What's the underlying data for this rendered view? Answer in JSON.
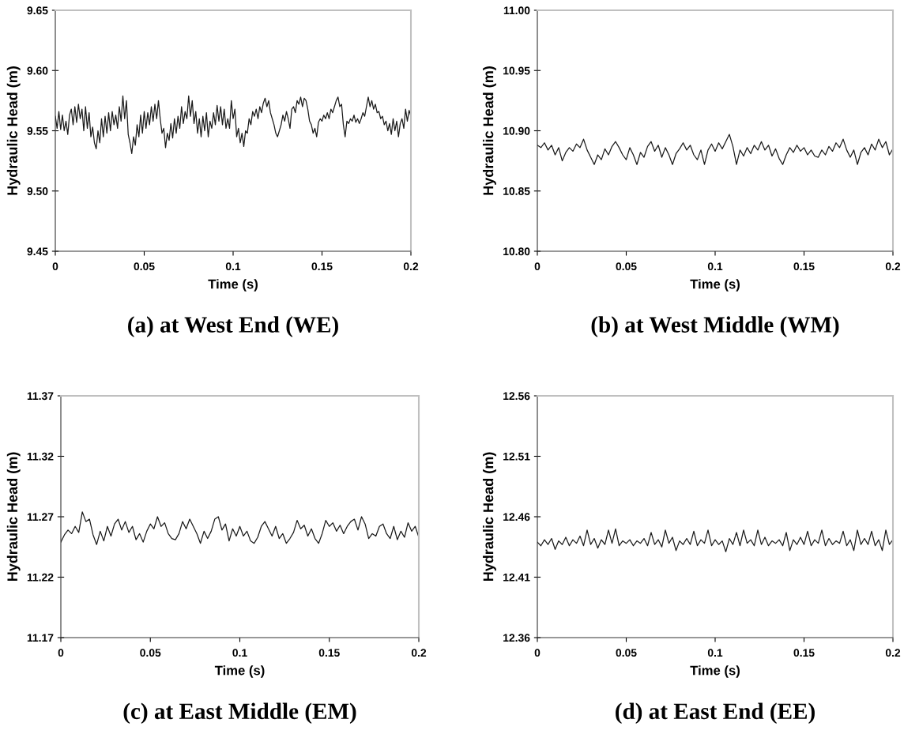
{
  "chart_data": [
    {
      "type": "line",
      "title": "(a) at West End (WE)",
      "xlabel": "Time (s)",
      "ylabel": "Hydraulic Head (m)",
      "xlim": [
        0,
        0.2
      ],
      "xticks": [
        0,
        0.05,
        0.1,
        0.15,
        0.2
      ],
      "ylim": [
        9.45,
        9.65
      ],
      "yticks": [
        9.45,
        {
          "value": 9.5,
          "label": "9.50"
        },
        9.55,
        {
          "value": 9.6,
          "label": "9.60"
        },
        9.65
      ],
      "x": [
        0,
        0.001,
        0.002,
        0.003,
        0.004,
        0.005,
        0.006,
        0.007,
        0.008,
        0.009,
        0.01,
        0.011,
        0.012,
        0.013,
        0.014,
        0.015,
        0.016,
        0.017,
        0.018,
        0.019,
        0.02,
        0.021,
        0.022,
        0.023,
        0.024,
        0.025,
        0.026,
        0.027,
        0.028,
        0.029,
        0.03,
        0.031,
        0.032,
        0.033,
        0.034,
        0.035,
        0.036,
        0.037,
        0.038,
        0.039,
        0.04,
        0.041,
        0.042,
        0.043,
        0.044,
        0.045,
        0.046,
        0.047,
        0.048,
        0.049,
        0.05,
        0.051,
        0.052,
        0.053,
        0.054,
        0.055,
        0.056,
        0.057,
        0.058,
        0.059,
        0.06,
        0.061,
        0.062,
        0.063,
        0.064,
        0.065,
        0.066,
        0.067,
        0.068,
        0.069,
        0.07,
        0.071,
        0.072,
        0.073,
        0.074,
        0.075,
        0.076,
        0.077,
        0.078,
        0.079,
        0.08,
        0.081,
        0.082,
        0.083,
        0.084,
        0.085,
        0.086,
        0.087,
        0.088,
        0.089,
        0.09,
        0.091,
        0.092,
        0.093,
        0.094,
        0.095,
        0.096,
        0.097,
        0.098,
        0.099,
        0.1,
        0.101,
        0.102,
        0.103,
        0.104,
        0.105,
        0.106,
        0.107,
        0.108,
        0.109,
        0.11,
        0.111,
        0.112,
        0.113,
        0.114,
        0.115,
        0.116,
        0.117,
        0.118,
        0.119,
        0.12,
        0.121,
        0.122,
        0.123,
        0.124,
        0.125,
        0.126,
        0.127,
        0.128,
        0.129,
        0.13,
        0.131,
        0.132,
        0.133,
        0.134,
        0.135,
        0.136,
        0.137,
        0.138,
        0.139,
        0.14,
        0.141,
        0.142,
        0.143,
        0.144,
        0.145,
        0.146,
        0.147,
        0.148,
        0.149,
        0.15,
        0.151,
        0.152,
        0.153,
        0.154,
        0.155,
        0.156,
        0.157,
        0.158,
        0.159,
        0.16,
        0.161,
        0.162,
        0.163,
        0.164,
        0.165,
        0.166,
        0.167,
        0.168,
        0.169,
        0.17,
        0.171,
        0.172,
        0.173,
        0.174,
        0.175,
        0.176,
        0.177,
        0.178,
        0.179,
        0.18,
        0.181,
        0.182,
        0.183,
        0.184,
        0.185,
        0.186,
        0.187,
        0.188,
        0.189,
        0.19,
        0.191,
        0.192,
        0.193,
        0.194,
        0.195,
        0.196,
        0.197,
        0.198,
        0.199,
        0.2
      ],
      "series": [
        {
          "color": "#1a1a1a",
          "values": [
            9.562,
            9.552,
            9.566,
            9.551,
            9.563,
            9.55,
            9.558,
            9.547,
            9.563,
            9.568,
            9.555,
            9.57,
            9.557,
            9.572,
            9.56,
            9.568,
            9.55,
            9.57,
            9.552,
            9.565,
            9.545,
            9.553,
            9.54,
            9.535,
            9.55,
            9.54,
            9.56,
            9.545,
            9.562,
            9.548,
            9.565,
            9.55,
            9.566,
            9.555,
            9.563,
            9.552,
            9.57,
            9.558,
            9.579,
            9.56,
            9.575,
            9.547,
            9.54,
            9.531,
            9.545,
            9.538,
            9.555,
            9.545,
            9.563,
            9.548,
            9.566,
            9.552,
            9.565,
            9.555,
            9.57,
            9.558,
            9.572,
            9.56,
            9.575,
            9.56,
            9.548,
            9.552,
            9.536,
            9.548,
            9.542,
            9.556,
            9.544,
            9.56,
            9.548,
            9.562,
            9.552,
            9.57,
            9.556,
            9.566,
            9.56,
            9.579,
            9.562,
            9.575,
            9.556,
            9.566,
            9.548,
            9.56,
            9.545,
            9.562,
            9.55,
            9.565,
            9.545,
            9.558,
            9.552,
            9.565,
            9.555,
            9.571,
            9.558,
            9.57,
            9.555,
            9.568,
            9.552,
            9.56,
            9.552,
            9.575,
            9.56,
            9.568,
            9.545,
            9.552,
            9.54,
            9.548,
            9.537,
            9.55,
            9.548,
            9.56,
            9.555,
            9.566,
            9.562,
            9.568,
            9.56,
            9.57,
            9.565,
            9.573,
            9.577,
            9.57,
            9.575,
            9.565,
            9.56,
            9.555,
            9.548,
            9.545,
            9.55,
            9.555,
            9.563,
            9.558,
            9.566,
            9.56,
            9.552,
            9.568,
            9.57,
            9.565,
            9.575,
            9.572,
            9.578,
            9.57,
            9.577,
            9.575,
            9.568,
            9.558,
            9.555,
            9.548,
            9.552,
            9.545,
            9.557,
            9.56,
            9.558,
            9.563,
            9.56,
            9.565,
            9.56,
            9.568,
            9.565,
            9.57,
            9.575,
            9.578,
            9.57,
            9.572,
            9.555,
            9.545,
            9.558,
            9.556,
            9.56,
            9.558,
            9.563,
            9.557,
            9.56,
            9.556,
            9.56,
            9.565,
            9.562,
            9.57,
            9.578,
            9.57,
            9.575,
            9.568,
            9.572,
            9.565,
            9.566,
            9.56,
            9.562,
            9.555,
            9.558,
            9.55,
            9.556,
            9.547,
            9.56,
            9.55,
            9.558,
            9.545,
            9.556,
            9.56,
            9.552,
            9.568,
            9.558,
            9.567,
            9.562
          ]
        }
      ]
    },
    {
      "type": "line",
      "title": "(b) at West Middle (WM)",
      "xlabel": "Time (s)",
      "ylabel": "Hydraulic Head (m)",
      "xlim": [
        0,
        0.2
      ],
      "xticks": [
        0,
        0.05,
        0.1,
        0.15,
        0.2
      ],
      "ylim": [
        10.8,
        11.0
      ],
      "yticks": [
        {
          "value": 10.8,
          "label": "10.80"
        },
        10.85,
        {
          "value": 10.9,
          "label": "10.90"
        },
        10.95,
        {
          "value": 11.0,
          "label": "11.00"
        }
      ],
      "x": [
        0,
        0.002,
        0.004,
        0.006,
        0.008,
        0.01,
        0.012,
        0.014,
        0.016,
        0.018,
        0.02,
        0.022,
        0.024,
        0.026,
        0.028,
        0.03,
        0.032,
        0.034,
        0.036,
        0.038,
        0.04,
        0.042,
        0.044,
        0.046,
        0.048,
        0.05,
        0.052,
        0.054,
        0.056,
        0.058,
        0.06,
        0.062,
        0.064,
        0.066,
        0.068,
        0.07,
        0.072,
        0.074,
        0.076,
        0.078,
        0.08,
        0.082,
        0.084,
        0.086,
        0.088,
        0.09,
        0.092,
        0.094,
        0.096,
        0.098,
        0.1,
        0.102,
        0.104,
        0.106,
        0.108,
        0.11,
        0.112,
        0.114,
        0.116,
        0.118,
        0.12,
        0.122,
        0.124,
        0.126,
        0.128,
        0.13,
        0.132,
        0.134,
        0.136,
        0.138,
        0.14,
        0.142,
        0.144,
        0.146,
        0.148,
        0.15,
        0.152,
        0.154,
        0.156,
        0.158,
        0.16,
        0.162,
        0.164,
        0.166,
        0.168,
        0.17,
        0.172,
        0.174,
        0.176,
        0.178,
        0.18,
        0.182,
        0.184,
        0.186,
        0.188,
        0.19,
        0.192,
        0.194,
        0.196,
        0.198,
        0.2
      ],
      "series": [
        {
          "color": "#1a1a1a",
          "values": [
            10.888,
            10.886,
            10.89,
            10.884,
            10.888,
            10.88,
            10.886,
            10.875,
            10.882,
            10.886,
            10.883,
            10.889,
            10.886,
            10.893,
            10.884,
            10.878,
            10.872,
            10.88,
            10.876,
            10.885,
            10.88,
            10.887,
            10.891,
            10.886,
            10.88,
            10.876,
            10.886,
            10.88,
            10.872,
            10.882,
            10.878,
            10.887,
            10.891,
            10.883,
            10.888,
            10.878,
            10.886,
            10.88,
            10.872,
            10.881,
            10.885,
            10.89,
            10.884,
            10.888,
            10.88,
            10.876,
            10.884,
            10.872,
            10.884,
            10.889,
            10.883,
            10.89,
            10.885,
            10.891,
            10.897,
            10.887,
            10.872,
            10.884,
            10.879,
            10.886,
            10.881,
            10.888,
            10.884,
            10.891,
            10.884,
            10.888,
            10.879,
            10.885,
            10.877,
            10.872,
            10.88,
            10.886,
            10.882,
            10.888,
            10.883,
            10.886,
            10.88,
            10.884,
            10.879,
            10.878,
            10.884,
            10.88,
            10.887,
            10.883,
            10.89,
            10.886,
            10.893,
            10.884,
            10.878,
            10.884,
            10.872,
            10.882,
            10.886,
            10.88,
            10.889,
            10.884,
            10.893,
            10.886,
            10.891,
            10.88,
            10.885
          ]
        }
      ]
    },
    {
      "type": "line",
      "title": "(c) at East Middle (EM)",
      "xlabel": "Time (s)",
      "ylabel": "Hydraulic Head (m)",
      "xlim": [
        0,
        0.2
      ],
      "xticks": [
        0,
        0.05,
        0.1,
        0.15,
        0.2
      ],
      "ylim": [
        11.17,
        11.37
      ],
      "yticks": [
        11.17,
        11.22,
        11.27,
        11.32,
        11.37
      ],
      "x": [
        0,
        0.002,
        0.004,
        0.006,
        0.008,
        0.01,
        0.012,
        0.014,
        0.016,
        0.018,
        0.02,
        0.022,
        0.024,
        0.026,
        0.028,
        0.03,
        0.032,
        0.034,
        0.036,
        0.038,
        0.04,
        0.042,
        0.044,
        0.046,
        0.048,
        0.05,
        0.052,
        0.054,
        0.056,
        0.058,
        0.06,
        0.062,
        0.064,
        0.066,
        0.068,
        0.07,
        0.072,
        0.074,
        0.076,
        0.078,
        0.08,
        0.082,
        0.084,
        0.086,
        0.088,
        0.09,
        0.092,
        0.094,
        0.096,
        0.098,
        0.1,
        0.102,
        0.104,
        0.106,
        0.108,
        0.11,
        0.112,
        0.114,
        0.116,
        0.118,
        0.12,
        0.122,
        0.124,
        0.126,
        0.128,
        0.13,
        0.132,
        0.134,
        0.136,
        0.138,
        0.14,
        0.142,
        0.144,
        0.146,
        0.148,
        0.15,
        0.152,
        0.154,
        0.156,
        0.158,
        0.16,
        0.162,
        0.164,
        0.166,
        0.168,
        0.17,
        0.172,
        0.174,
        0.176,
        0.178,
        0.18,
        0.182,
        0.184,
        0.186,
        0.188,
        0.19,
        0.192,
        0.194,
        0.196,
        0.198,
        0.2
      ],
      "series": [
        {
          "color": "#1a1a1a",
          "values": [
            11.249,
            11.255,
            11.259,
            11.256,
            11.262,
            11.257,
            11.274,
            11.266,
            11.268,
            11.255,
            11.247,
            11.258,
            11.25,
            11.262,
            11.254,
            11.264,
            11.268,
            11.259,
            11.266,
            11.257,
            11.262,
            11.251,
            11.256,
            11.249,
            11.258,
            11.264,
            11.26,
            11.27,
            11.262,
            11.265,
            11.256,
            11.252,
            11.251,
            11.256,
            11.266,
            11.26,
            11.268,
            11.262,
            11.256,
            11.248,
            11.258,
            11.252,
            11.258,
            11.268,
            11.27,
            11.259,
            11.264,
            11.25,
            11.26,
            11.254,
            11.262,
            11.254,
            11.258,
            11.25,
            11.248,
            11.253,
            11.262,
            11.266,
            11.26,
            11.254,
            11.262,
            11.252,
            11.256,
            11.248,
            11.252,
            11.257,
            11.267,
            11.26,
            11.263,
            11.254,
            11.26,
            11.252,
            11.248,
            11.256,
            11.267,
            11.262,
            11.265,
            11.258,
            11.263,
            11.256,
            11.262,
            11.266,
            11.268,
            11.259,
            11.27,
            11.264,
            11.252,
            11.256,
            11.254,
            11.262,
            11.264,
            11.256,
            11.252,
            11.262,
            11.251,
            11.258,
            11.253,
            11.265,
            11.258,
            11.262,
            11.253
          ]
        }
      ]
    },
    {
      "type": "line",
      "title": "(d) at East End (EE)",
      "xlabel": "Time (s)",
      "ylabel": "Hydraulic Head (m)",
      "xlim": [
        0,
        0.2
      ],
      "xticks": [
        0,
        0.05,
        0.1,
        0.15,
        0.2
      ],
      "ylim": [
        12.36,
        12.56
      ],
      "yticks": [
        12.36,
        12.41,
        12.46,
        12.51,
        12.56
      ],
      "x": [
        0,
        0.002,
        0.004,
        0.006,
        0.008,
        0.01,
        0.012,
        0.014,
        0.016,
        0.018,
        0.02,
        0.022,
        0.024,
        0.026,
        0.028,
        0.03,
        0.032,
        0.034,
        0.036,
        0.038,
        0.04,
        0.042,
        0.044,
        0.046,
        0.048,
        0.05,
        0.052,
        0.054,
        0.056,
        0.058,
        0.06,
        0.062,
        0.064,
        0.066,
        0.068,
        0.07,
        0.072,
        0.074,
        0.076,
        0.078,
        0.08,
        0.082,
        0.084,
        0.086,
        0.088,
        0.09,
        0.092,
        0.094,
        0.096,
        0.098,
        0.1,
        0.102,
        0.104,
        0.106,
        0.108,
        0.11,
        0.112,
        0.114,
        0.116,
        0.118,
        0.12,
        0.122,
        0.124,
        0.126,
        0.128,
        0.13,
        0.132,
        0.134,
        0.136,
        0.138,
        0.14,
        0.142,
        0.144,
        0.146,
        0.148,
        0.15,
        0.152,
        0.154,
        0.156,
        0.158,
        0.16,
        0.162,
        0.164,
        0.166,
        0.168,
        0.17,
        0.172,
        0.174,
        0.176,
        0.178,
        0.18,
        0.182,
        0.184,
        0.186,
        0.188,
        0.19,
        0.192,
        0.194,
        0.196,
        0.198,
        0.2
      ],
      "series": [
        {
          "color": "#1a1a1a",
          "values": [
            12.439,
            12.436,
            12.441,
            12.437,
            12.442,
            12.433,
            12.44,
            12.437,
            12.443,
            12.436,
            12.441,
            12.438,
            12.444,
            12.436,
            12.449,
            12.437,
            12.442,
            12.434,
            12.441,
            12.437,
            12.449,
            12.438,
            12.45,
            12.436,
            12.44,
            12.438,
            12.441,
            12.436,
            12.44,
            12.438,
            12.442,
            12.436,
            12.447,
            12.437,
            12.441,
            12.435,
            12.449,
            12.438,
            12.443,
            12.432,
            12.44,
            12.437,
            12.442,
            12.437,
            12.448,
            12.436,
            12.441,
            12.438,
            12.449,
            12.436,
            12.441,
            12.437,
            12.44,
            12.431,
            12.442,
            12.437,
            12.447,
            12.436,
            12.449,
            12.438,
            12.441,
            12.436,
            12.449,
            12.437,
            12.443,
            12.436,
            12.44,
            12.438,
            12.441,
            12.436,
            12.447,
            12.432,
            12.441,
            12.437,
            12.443,
            12.437,
            12.448,
            12.436,
            12.441,
            12.438,
            12.449,
            12.436,
            12.442,
            12.437,
            12.44,
            12.438,
            12.448,
            12.436,
            12.441,
            12.432,
            12.449,
            12.437,
            12.442,
            12.437,
            12.448,
            12.436,
            12.441,
            12.432,
            12.449,
            12.437,
            12.441
          ]
        }
      ]
    }
  ]
}
